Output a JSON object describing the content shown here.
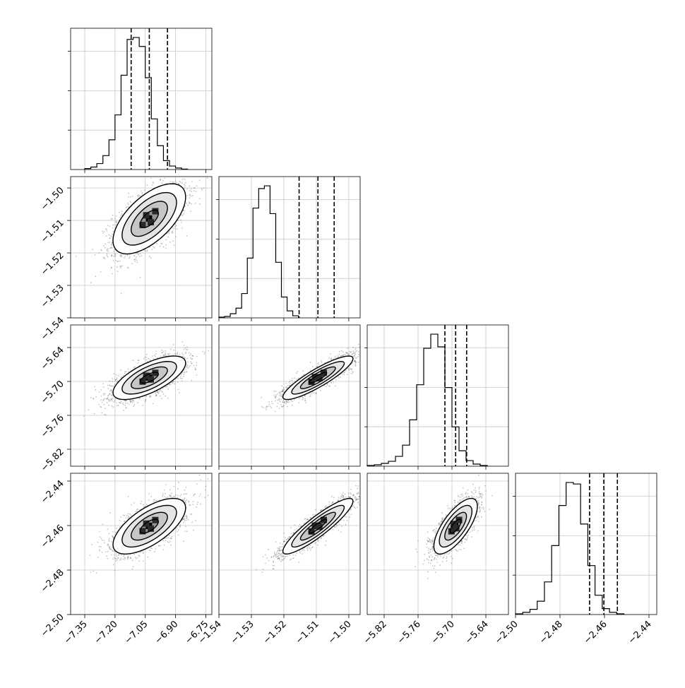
{
  "chart_data": {
    "type": "corner",
    "grid": true,
    "variables": [
      {
        "index": 0,
        "range": [
          -7.42,
          -6.72
        ],
        "ticks": [
          "−7.35",
          "−7.20",
          "−7.05",
          "−6.90",
          "−6.75"
        ],
        "tick_values": [
          -7.35,
          -7.2,
          -7.05,
          -6.9,
          -6.75
        ],
        "quantiles": [
          -7.12,
          -7.03,
          -6.94
        ]
      },
      {
        "index": 1,
        "range": [
          -1.54,
          -1.4965
        ],
        "ticks": [
          "−1.54",
          "−1.53",
          "−1.52",
          "−1.51",
          "−1.50"
        ],
        "tick_values": [
          -1.54,
          -1.53,
          -1.52,
          -1.51,
          -1.5
        ],
        "quantiles": [
          -1.5153,
          -1.5095,
          -1.5045
        ]
      },
      {
        "index": 2,
        "range": [
          -5.85,
          -5.6
        ],
        "ticks": [
          "−5.82",
          "−5.76",
          "−5.70",
          "−5.64"
        ],
        "tick_values": [
          -5.82,
          -5.76,
          -5.7,
          -5.64
        ],
        "quantiles": [
          -5.7125,
          -5.6935,
          -5.674
        ]
      },
      {
        "index": 3,
        "range": [
          -2.5,
          -2.4365
        ],
        "ticks": [
          "−2.50",
          "−2.48",
          "−2.46",
          "−2.44"
        ],
        "tick_values": [
          -2.5,
          -2.48,
          -2.46,
          -2.44
        ],
        "quantiles": [
          -2.4667,
          -2.4603,
          -2.4542
        ]
      }
    ],
    "histograms": [
      {
        "var": 0,
        "bins_start": -7.35,
        "bin_width": 0.03,
        "counts": [
          2,
          5,
          12,
          28,
          60,
          110,
          190,
          262,
          266,
          248,
          185,
          102,
          48,
          18,
          7,
          3,
          1
        ]
      },
      {
        "var": 1,
        "bins_start": -1.54,
        "bin_width": 0.00175,
        "counts": [
          1,
          2,
          6,
          14,
          35,
          86,
          158,
          186,
          190,
          150,
          80,
          30,
          10,
          3
        ]
      },
      {
        "var": 2,
        "bins_start": -5.85,
        "bin_width": 0.0125,
        "counts": [
          1,
          2,
          4,
          7,
          14,
          30,
          66,
          116,
          168,
          188,
          170,
          112,
          56,
          22,
          8,
          3,
          1
        ]
      },
      {
        "var": 3,
        "bins_start": -2.5,
        "bin_width": 0.00325,
        "counts": [
          1,
          3,
          7,
          18,
          44,
          93,
          147,
          178,
          176,
          122,
          66,
          26,
          8,
          3,
          1
        ]
      }
    ],
    "pairs": [
      {
        "x_var": 0,
        "y_var": 1,
        "rho": 0.62
      },
      {
        "x_var": 0,
        "y_var": 2,
        "rho": 0.68
      },
      {
        "x_var": 1,
        "y_var": 2,
        "rho": 0.88
      },
      {
        "x_var": 0,
        "y_var": 3,
        "rho": 0.66
      },
      {
        "x_var": 1,
        "y_var": 3,
        "rho": 0.9
      },
      {
        "x_var": 2,
        "y_var": 3,
        "rho": 0.72
      }
    ],
    "contour_levels_sigma": [
      0.5,
      1.0,
      1.5,
      2.0
    ]
  }
}
